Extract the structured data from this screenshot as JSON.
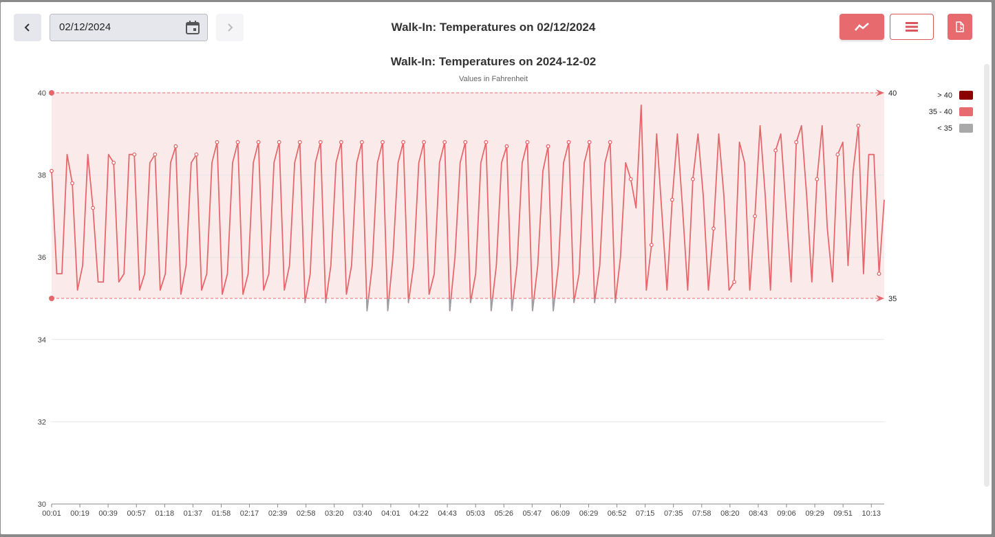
{
  "toolbar": {
    "date_value": "02/12/2024",
    "title": "Walk-In: Temperatures on 02/12/2024"
  },
  "icons": {
    "prev": "chevron-left-icon",
    "next": "chevron-right-icon",
    "calendar": "calendar-icon",
    "chart_view": "line-chart-icon",
    "table_view": "list-icon",
    "export": "file-export-icon"
  },
  "colors": {
    "line": "#e5676b",
    "band_fill": "#fbeaea",
    "below_range": "#9aa0a6",
    "above_range": "#8b0000",
    "accent": "#e66a6e"
  },
  "chart_data": {
    "type": "line",
    "title": "Walk-In: Temperatures on 2024-12-02",
    "subtitle": "Values in Fahrenheit",
    "ylim": [
      30,
      40
    ],
    "yticks": [
      "30",
      "32",
      "34",
      "36",
      "38",
      "40"
    ],
    "xticks": [
      "00:01",
      "00:19",
      "00:39",
      "00:57",
      "01:18",
      "01:37",
      "01:58",
      "02:17",
      "02:39",
      "02:58",
      "03:20",
      "03:40",
      "04:01",
      "04:22",
      "04:43",
      "05:03",
      "05:26",
      "05:47",
      "06:09",
      "06:29",
      "06:52",
      "07:15",
      "07:35",
      "07:58",
      "08:20",
      "08:43",
      "09:06",
      "09:29",
      "09:51",
      "10:13"
    ],
    "band": {
      "low": 35,
      "high": 40,
      "low_label": "35",
      "high_label": "40"
    },
    "legend": [
      {
        "label": "> 40",
        "color": "#8b0000"
      },
      {
        "label": "35 - 40",
        "color": "#e66a6e"
      },
      {
        "label": "< 35",
        "color": "#a9a9a9"
      }
    ],
    "grid": true,
    "series": [
      {
        "values": [
          38.1,
          35.6,
          35.6,
          38.5,
          37.8,
          35.2,
          35.8,
          38.5,
          37.2,
          35.4,
          35.4,
          38.5,
          38.3,
          35.4,
          35.6,
          38.5,
          38.5,
          35.2,
          35.6,
          38.3,
          38.5,
          35.2,
          35.6,
          38.3,
          38.7,
          35.1,
          35.8,
          38.3,
          38.5,
          35.2,
          35.6,
          38.3,
          38.8,
          35.1,
          35.6,
          38.3,
          38.8,
          35.1,
          35.6,
          38.3,
          38.8,
          35.2,
          35.6,
          38.3,
          38.8,
          35.2,
          35.8,
          38.3,
          38.8,
          34.9,
          35.6,
          38.3,
          38.8,
          34.9,
          35.8,
          38.3,
          38.8,
          35.1,
          35.8,
          38.3,
          38.8,
          34.7,
          35.8,
          38.3,
          38.8,
          34.7,
          36.0,
          38.3,
          38.8,
          34.9,
          35.8,
          38.3,
          38.8,
          35.1,
          35.6,
          38.3,
          38.8,
          34.7,
          36.0,
          38.3,
          38.8,
          34.9,
          35.6,
          38.3,
          38.8,
          34.7,
          35.8,
          38.3,
          38.7,
          34.7,
          35.8,
          38.3,
          38.8,
          34.7,
          35.8,
          38.1,
          38.7,
          34.7,
          35.8,
          38.3,
          38.8,
          34.9,
          35.6,
          38.3,
          38.8,
          34.9,
          35.8,
          38.3,
          38.8,
          34.9,
          36.0,
          38.3,
          37.9,
          37.2,
          39.7,
          35.2,
          36.3,
          39.0,
          37.1,
          35.2,
          37.4,
          39.0,
          37.2,
          35.2,
          37.9,
          39.0,
          37.5,
          35.2,
          36.7,
          39.0,
          37.5,
          35.2,
          35.4,
          38.8,
          38.3,
          35.2,
          37.0,
          39.2,
          37.5,
          35.2,
          38.6,
          39.0,
          37.2,
          35.4,
          38.8,
          39.2,
          37.5,
          35.4,
          37.9,
          39.2,
          36.7,
          35.4,
          38.5,
          38.8,
          35.8,
          38.1,
          39.2,
          35.6,
          38.5,
          38.5,
          35.6,
          37.4
        ]
      }
    ]
  }
}
